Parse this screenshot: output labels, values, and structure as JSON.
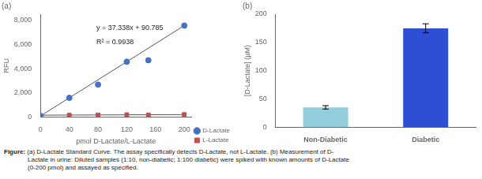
{
  "chart_data": [
    {
      "type": "scatter",
      "title": "(a)",
      "xlabel": "pmol D-Lactate/L-Lactate",
      "ylabel": "RFU",
      "series": [
        {
          "name": "D-Lactate",
          "color": "#4472C4",
          "marker": "circle",
          "x": [
            0,
            40,
            80,
            120,
            150,
            200
          ],
          "values": [
            90.785,
            1584.3,
            2679.2,
            4570.4,
            4693.1,
            7558.4
          ]
        },
        {
          "name": "L-Lactate",
          "color": "#C0504D",
          "marker": "square",
          "x": [
            0,
            40,
            80,
            120,
            150,
            200
          ],
          "values": [
            0,
            150,
            170,
            190,
            170,
            200
          ]
        },
        {
          "type": "line",
          "color": "#555555",
          "x": [
            0,
            200
          ],
          "values": [
            90.785,
            7558.385
          ]
        },
        {
          "type": "line",
          "color": "#555555",
          "x": [
            0,
            200
          ],
          "values": [
            150,
            200
          ]
        }
      ],
      "annotations": [
        "y = 37.338x + 90.785",
        "R² = 0.9938"
      ],
      "xlim": [
        0,
        210
      ],
      "ylim": [
        0,
        8500
      ],
      "xticks": [
        0,
        40,
        80,
        120,
        160,
        200
      ],
      "yticks": [
        0,
        2000,
        4000,
        6000,
        8000
      ],
      "legend": "lower right",
      "grid": false
    },
    {
      "type": "bar",
      "title": "(b)",
      "ylabel": "[D-Lactate] (µM)",
      "categories": [
        "Non-Diabetic",
        "Diabetic"
      ],
      "values": [
        35,
        175
      ],
      "errors": [
        3,
        8
      ],
      "colors": [
        "#92CDDC",
        "#2E4ED4"
      ],
      "ylim": [
        0,
        200
      ],
      "yticks": [
        0,
        50,
        100,
        150,
        200
      ],
      "grid": false
    }
  ],
  "caption_label": "Figure:",
  "caption_lines": [
    "(a) D-Lactate Standard Curve. The assay specifically detects D-Lactate, not L-Lactate. (b) Measurement of D-",
    "Lactate in urine: Diluted samples (1:10, non-diabetic; 1:100 diabetic) were spiked with known amounts of D-Lactate",
    "(0-200 pmol) and assayed as specified."
  ]
}
